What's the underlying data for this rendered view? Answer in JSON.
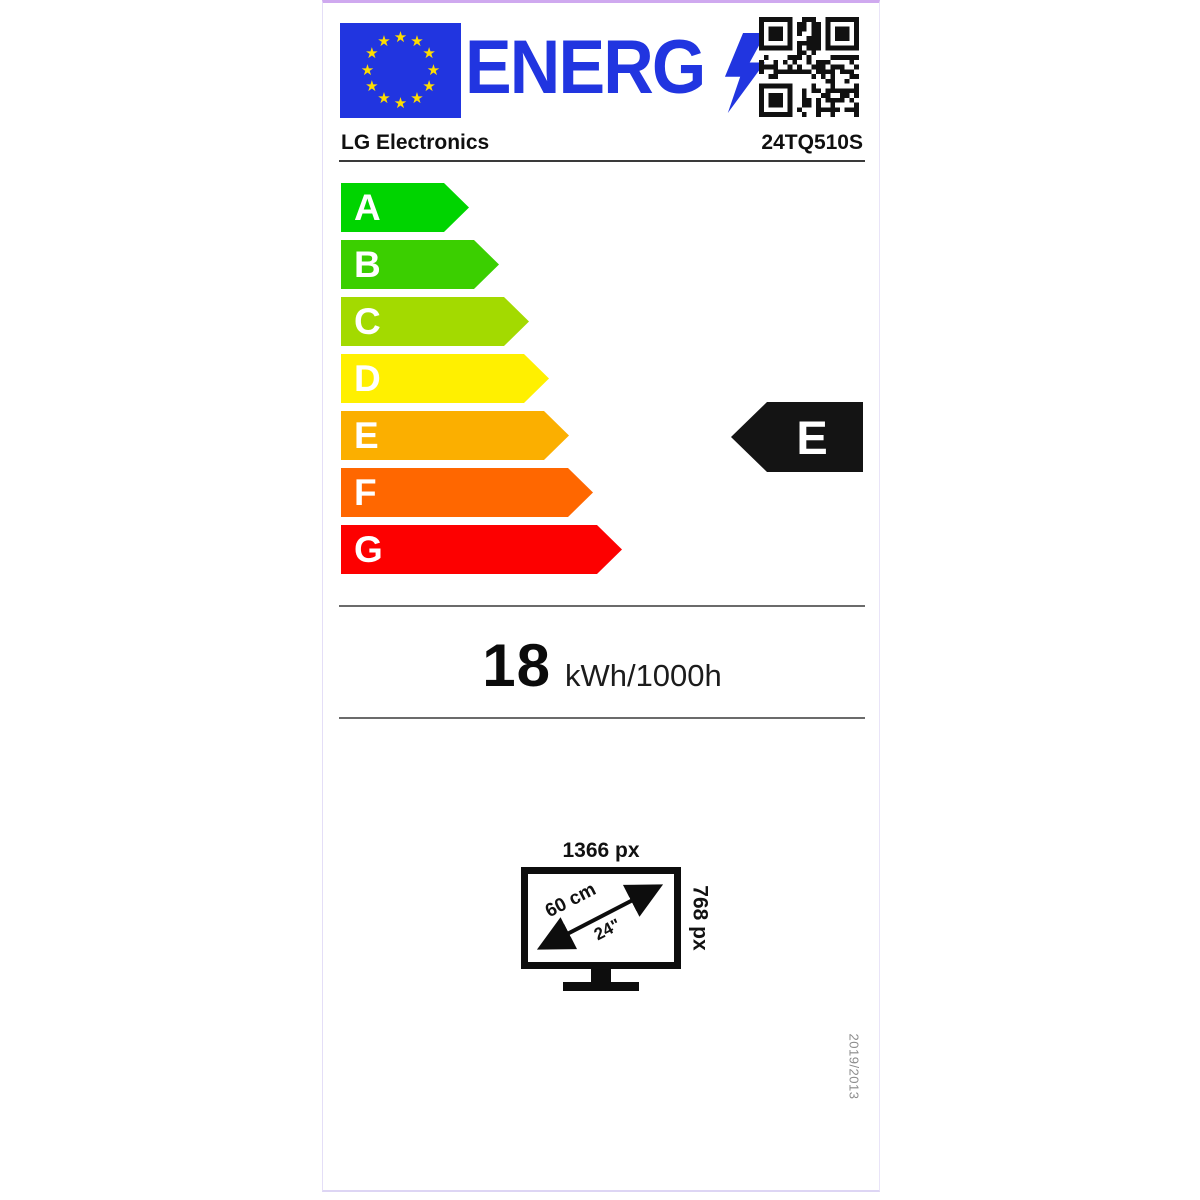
{
  "label": {
    "logo_text": "ENERG",
    "manufacturer": "LG Electronics",
    "model": "24TQ510S",
    "scale": {
      "classes": [
        {
          "label": "A",
          "color": "#00d400"
        },
        {
          "label": "B",
          "color": "#3bcf00"
        },
        {
          "label": "C",
          "color": "#a3da00"
        },
        {
          "label": "D",
          "color": "#fff000"
        },
        {
          "label": "E",
          "color": "#fbaf00"
        },
        {
          "label": "F",
          "color": "#ff6700"
        },
        {
          "label": "G",
          "color": "#fd0000"
        }
      ],
      "current_class": "E"
    },
    "consumption": {
      "value": "18",
      "unit": "kWh/1000h"
    },
    "display": {
      "resolution_width": "1366 px",
      "resolution_height": "768 px",
      "diagonal_cm": "60 cm",
      "diagonal_inch": "24\""
    },
    "regulation_number": "2019/2013",
    "colors": {
      "eu_blue": "#2135e0",
      "star_yellow": "#ffdd00",
      "arrow_black": "#141414"
    },
    "icons": {
      "flag": "eu-flag",
      "bolt": "lightning-bolt",
      "qr": "qr-code"
    }
  }
}
